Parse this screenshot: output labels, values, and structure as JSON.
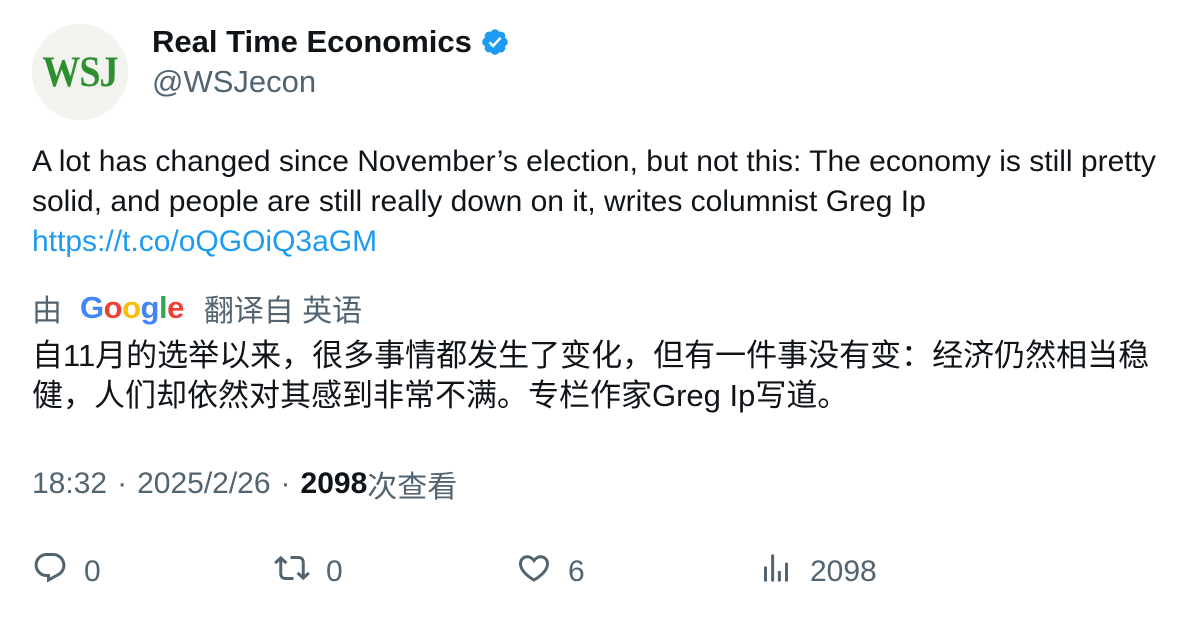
{
  "author": {
    "avatar_text": "WSJ",
    "name": "Real Time Economics",
    "handle": "@WSJecon",
    "verified_icon": "verified-badge-icon"
  },
  "tweet": {
    "text": "A lot has changed since November’s election, but not this: The economy is still pretty solid, and people are still really down on it, writes columnist Greg Ip",
    "link": "https://t.co/oQGOiQ3aGM"
  },
  "translation": {
    "prefix": "由",
    "provider_letters": [
      "G",
      "o",
      "o",
      "g",
      "l",
      "e"
    ],
    "suffix": "翻译自 英语",
    "text": "自11月的选举以来，很多事情都发生了变化，但有一件事没有变：经济仍然相当稳健，人们却依然对其感到非常不满。专栏作家Greg Ip写道。"
  },
  "meta": {
    "time": "18:32",
    "separator": "·",
    "date": "2025/2/26",
    "views_count": "2098",
    "views_label": "次查看"
  },
  "actions": {
    "reply": {
      "icon": "reply-icon",
      "count": "0"
    },
    "retweet": {
      "icon": "retweet-icon",
      "count": "0"
    },
    "like": {
      "icon": "heart-icon",
      "count": "6"
    },
    "views": {
      "icon": "analytics-icon",
      "count": "2098"
    }
  },
  "colors": {
    "link": "#1d9bf0",
    "secondary_text": "#536471",
    "primary_text": "#0f1419",
    "verified": "#1d9bf0",
    "avatar_text": "#2e8f2e"
  }
}
